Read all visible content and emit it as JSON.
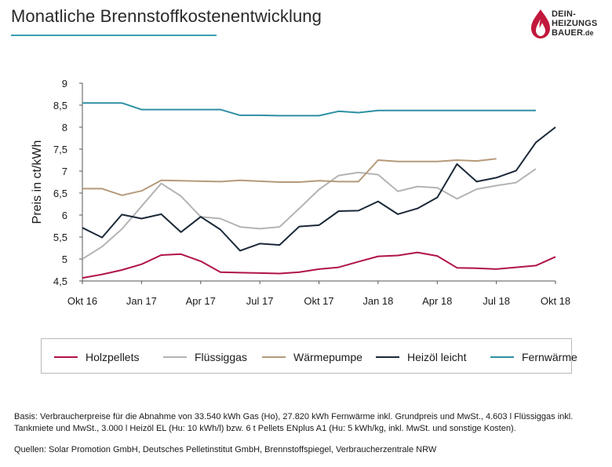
{
  "header": {
    "title": "Monatliche Brennstoffkostenentwicklung",
    "logo_line1": "DEIN-",
    "logo_line2": "HEIZUNGS",
    "logo_line3": "BAUER",
    "logo_suffix": ".de"
  },
  "colors": {
    "accent": "#3a9fb5",
    "holzpellets": "#b0134a",
    "fluessiggas": "#b4b4b4",
    "waermepumpe": "#b59a7a",
    "heizoel": "#1b2838",
    "fernwaerme": "#2e90a4",
    "logo_red": "#c2183c"
  },
  "chart_data": {
    "type": "line",
    "ylabel": "Preis in ct/kWh",
    "xlabel": "",
    "ylim": [
      4.5,
      9
    ],
    "yticks": [
      "4,5",
      "5",
      "5,5",
      "6",
      "6,5",
      "7",
      "7,5",
      "8",
      "8,5",
      "9"
    ],
    "xlim": [
      0,
      24
    ],
    "xticks": [
      {
        "x": 0,
        "label": "Okt 16"
      },
      {
        "x": 3,
        "label": "Jan 17"
      },
      {
        "x": 6,
        "label": "Apr 17"
      },
      {
        "x": 9,
        "label": "Jul 17"
      },
      {
        "x": 12,
        "label": "Okt 17"
      },
      {
        "x": 15,
        "label": "Jan 18"
      },
      {
        "x": 18,
        "label": "Apr 18"
      },
      {
        "x": 21,
        "label": "Jul 18"
      },
      {
        "x": 24,
        "label": "Okt 18"
      }
    ],
    "series": [
      {
        "key": "holzpellets",
        "name": "Holzpellets",
        "x": [
          0,
          1,
          2,
          3,
          4,
          5,
          6,
          7,
          8,
          9,
          10,
          11,
          12,
          13,
          14,
          15,
          16,
          17,
          18,
          19,
          20,
          21,
          22,
          23,
          24
        ],
        "values": [
          4.57,
          4.65,
          4.75,
          4.88,
          5.09,
          5.11,
          4.95,
          4.7,
          4.69,
          4.68,
          4.67,
          4.7,
          4.77,
          4.81,
          4.94,
          5.06,
          5.08,
          5.15,
          5.07,
          4.8,
          4.79,
          4.77,
          4.81,
          4.85,
          5.05
        ]
      },
      {
        "key": "fluessiggas",
        "name": "Flüssiggas",
        "x": [
          0,
          1,
          2,
          3,
          4,
          5,
          6,
          7,
          8,
          9,
          10,
          11,
          12,
          13,
          14,
          15,
          16,
          17,
          18,
          19,
          20,
          21,
          22,
          23
        ],
        "values": [
          5.0,
          5.28,
          5.68,
          6.2,
          6.72,
          6.43,
          5.96,
          5.92,
          5.73,
          5.69,
          5.73,
          6.15,
          6.58,
          6.9,
          6.97,
          6.92,
          6.54,
          6.65,
          6.62,
          6.37,
          6.59,
          6.67,
          6.74,
          7.05
        ]
      },
      {
        "key": "waermepumpe",
        "name": "Wärmepumpe",
        "x": [
          0,
          1,
          2,
          3,
          4,
          5,
          6,
          7,
          8,
          9,
          10,
          11,
          12,
          13,
          14,
          15,
          16,
          17,
          18,
          19,
          20,
          21
        ],
        "values": [
          6.6,
          6.6,
          6.45,
          6.55,
          6.79,
          6.78,
          6.77,
          6.76,
          6.79,
          6.77,
          6.75,
          6.75,
          6.78,
          6.76,
          6.76,
          7.25,
          7.22,
          7.22,
          7.22,
          7.25,
          7.23,
          7.28
        ]
      },
      {
        "key": "heizoel",
        "name": "Heizöl leicht",
        "x": [
          0,
          1,
          2,
          3,
          4,
          5,
          6,
          7,
          8,
          9,
          10,
          11,
          12,
          13,
          14,
          15,
          16,
          17,
          18,
          19,
          20,
          21,
          22,
          23,
          24
        ],
        "values": [
          5.71,
          5.49,
          6.01,
          5.92,
          6.02,
          5.61,
          5.96,
          5.67,
          5.19,
          5.35,
          5.32,
          5.74,
          5.77,
          6.09,
          6.1,
          6.31,
          6.02,
          6.15,
          6.4,
          7.16,
          6.76,
          6.85,
          7.01,
          7.65,
          8.0
        ]
      },
      {
        "key": "fernwaerme",
        "name": "Fernwärme",
        "x": [
          0,
          1,
          2,
          3,
          4,
          5,
          6,
          7,
          8,
          9,
          10,
          11,
          12,
          13,
          14,
          15,
          16,
          17,
          18,
          19,
          20,
          21,
          22,
          23
        ],
        "values": [
          8.55,
          8.55,
          8.55,
          8.4,
          8.4,
          8.4,
          8.4,
          8.4,
          8.27,
          8.27,
          8.26,
          8.26,
          8.26,
          8.36,
          8.33,
          8.38,
          8.38,
          8.38,
          8.38,
          8.38,
          8.38,
          8.38,
          8.38,
          8.38
        ]
      }
    ]
  },
  "footnote": {
    "text": "Basis: Verbraucherpreise für die Abnahme von 33.540 kWh Gas (Ho), 27.820 kWh Fernwärme inkl. Grundpreis und MwSt., 4.603 l Flüssiggas inkl. Tankmiete und MwSt., 3.000 l Heizöl EL (Hu: 10 kWh/l) bzw. 6 t Pellets ENplus A1 (Hu: 5 kWh/kg, inkl. MwSt. und sonstige Kosten).",
    "sources": "Quellen: Solar Promotion GmbH, Deutsches Pelletinstitut GmbH, Brennstoffspiegel, Verbraucherzentrale NRW"
  }
}
